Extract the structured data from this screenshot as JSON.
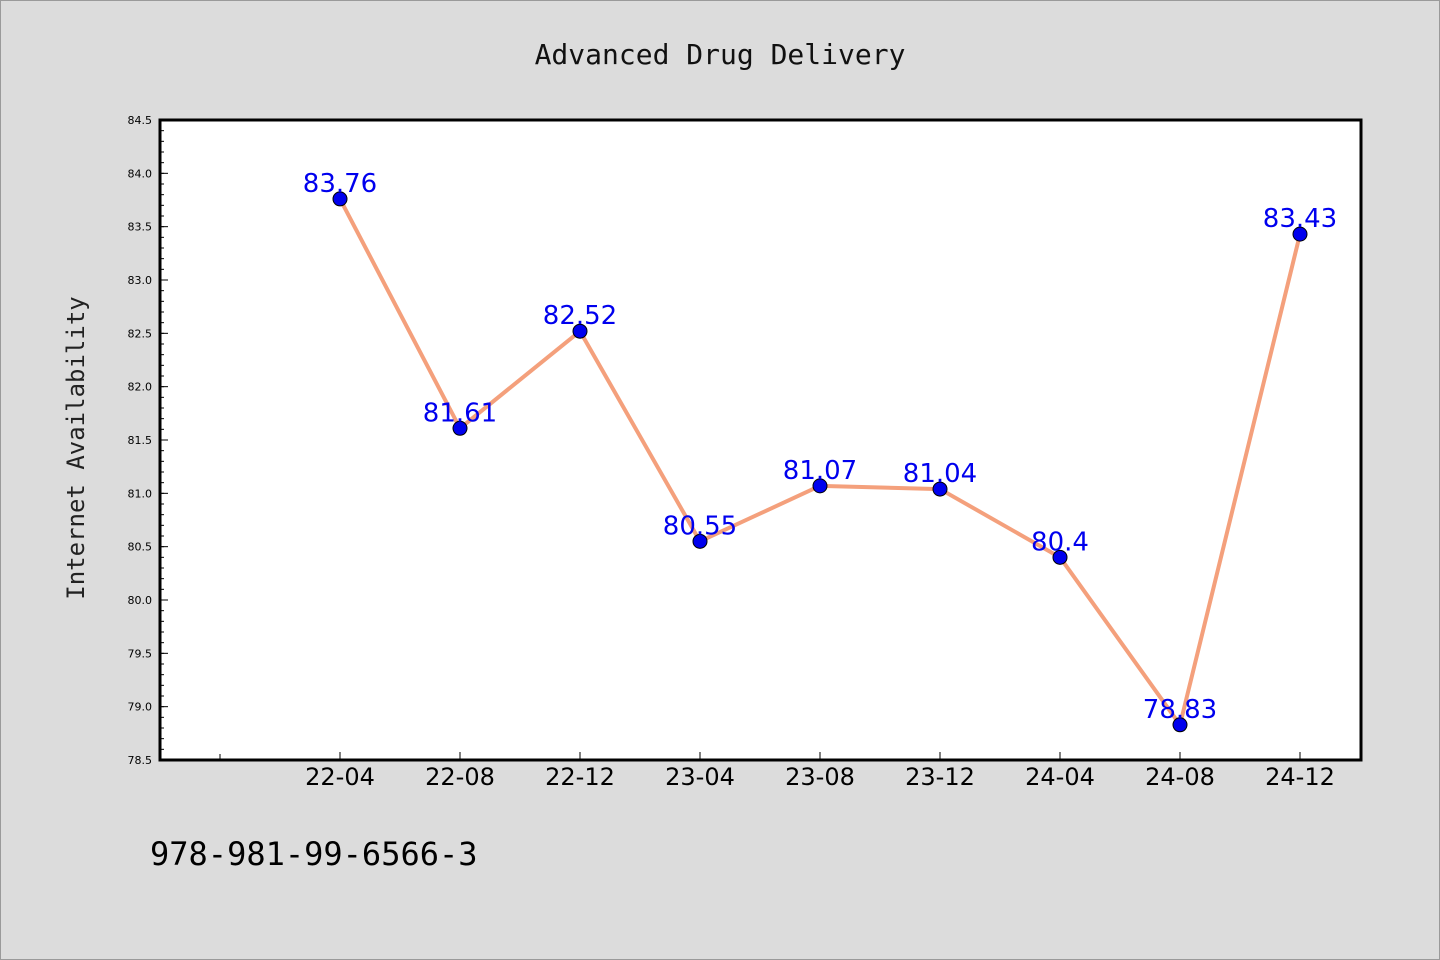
{
  "chart_data": {
    "type": "line",
    "title": "Advanced Drug Delivery",
    "xlabel": "",
    "ylabel": "Internet Availability",
    "categories": [
      "22-04",
      "22-08",
      "22-12",
      "23-04",
      "23-08",
      "23-12",
      "24-04",
      "24-08",
      "24-12"
    ],
    "values": [
      83.76,
      81.61,
      82.52,
      80.55,
      81.07,
      81.04,
      80.4,
      78.83,
      83.43
    ],
    "data_labels": [
      "83.76",
      "81.61",
      "82.52",
      "80.55",
      "81.07",
      "81.04",
      "80.4",
      "78.83",
      "83.43"
    ],
    "ylim": [
      78.5,
      84.5
    ],
    "yticks": [
      "78.5",
      "79.0",
      "79.5",
      "80.0",
      "80.5",
      "81.0",
      "81.5",
      "82.0",
      "82.5",
      "83.0",
      "83.5",
      "84.0",
      "84.5"
    ],
    "grid": false,
    "legend": "none",
    "colors": {
      "line": "#f4a07c",
      "marker": "#0000ee",
      "label": "#0000ee",
      "background": "#dcdcdc",
      "plot_area": "#ffffff"
    }
  },
  "footer": {
    "text": "978-981-99-6566-3"
  }
}
